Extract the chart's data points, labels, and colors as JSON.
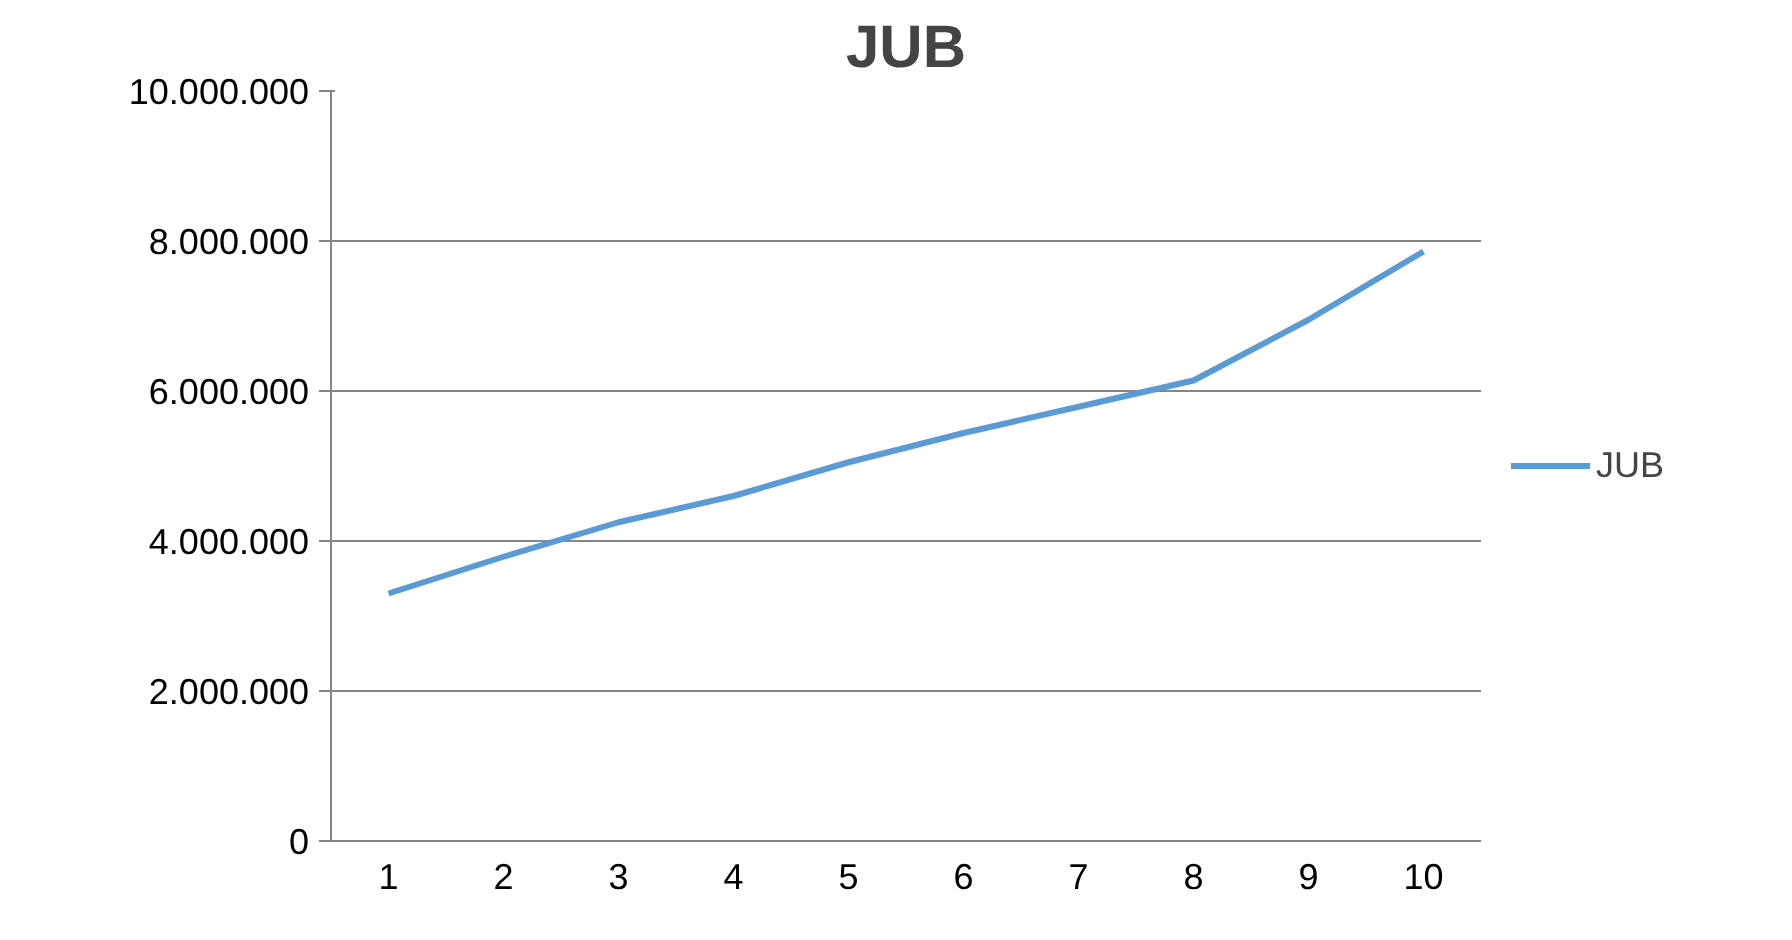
{
  "chart_data": {
    "type": "line",
    "title": "JUB",
    "categories": [
      "1",
      "2",
      "3",
      "4",
      "5",
      "6",
      "7",
      "8",
      "9",
      "10"
    ],
    "series": [
      {
        "name": "JUB",
        "color": "#5b9bd5",
        "values": [
          3300000,
          3790000,
          4250000,
          4600000,
          5050000,
          5440000,
          5790000,
          6140000,
          6950000,
          7860000
        ]
      }
    ],
    "ylim": [
      0,
      10000000
    ],
    "yticks": [
      {
        "value": 0,
        "label": "0"
      },
      {
        "value": 2000000,
        "label": "2.000.000"
      },
      {
        "value": 4000000,
        "label": "4.000.000"
      },
      {
        "value": 6000000,
        "label": "6.000.000"
      },
      {
        "value": 8000000,
        "label": "8.000.000"
      },
      {
        "value": 10000000,
        "label": "10.000.000"
      }
    ],
    "grid": "y",
    "legend": "right",
    "marker": "none",
    "line_style": "solid"
  }
}
